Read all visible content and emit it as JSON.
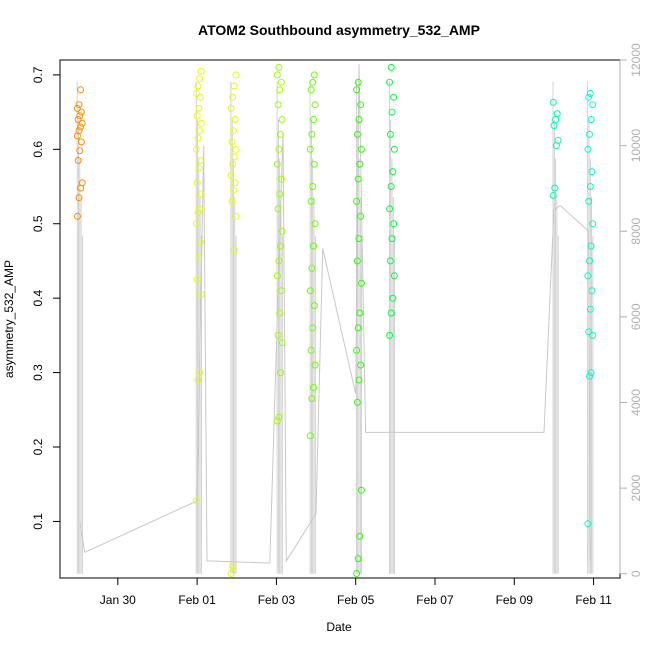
{
  "chart_data": {
    "type": "scatter",
    "title": "ATOM2 Southbound asymmetry_532_AMP",
    "xlabel": "Date",
    "ylabel": "asymmetry_532_AMP",
    "x_tick_labels": [
      "Jan 30",
      "Feb 01",
      "Feb 03",
      "Feb 05",
      "Feb 07",
      "Feb 09",
      "Feb 11"
    ],
    "y_tick_labels": [
      "0.1",
      "0.2",
      "0.3",
      "0.4",
      "0.5",
      "0.6",
      "0.7"
    ],
    "y2_tick_labels": [
      "0",
      "2000",
      "4000",
      "6000",
      "8000",
      "10000",
      "12000"
    ],
    "colors": {
      "axis": "#000000",
      "secondary_axis": "#b0b0b0",
      "line": "#c8c8c8",
      "cluster_colors": [
        "#ff8c00",
        "#e6ff00",
        "#e3ff00",
        "#9aff00",
        "#6aff00",
        "#2aff00",
        "#00ff3c",
        "#00ffaa",
        "#00ffcc"
      ]
    },
    "series": [
      {
        "values": [
          {
            "x": "Jan 29 01:00",
            "y": [
              0.51,
              0.535,
              0.548,
              0.555,
              0.585,
              0.598,
              0.61,
              0.618,
              0.625,
              0.63,
              0.635,
              0.64,
              0.645,
              0.65,
              0.655,
              0.66,
              0.68
            ]
          },
          {
            "x": "Feb 01 01:00",
            "y": [
              0.128,
              0.29,
              0.3,
              0.405,
              0.425,
              0.455,
              0.475,
              0.5,
              0.515,
              0.52,
              0.54,
              0.555,
              0.575,
              0.585,
              0.6,
              0.615,
              0.625,
              0.635,
              0.645,
              0.655,
              0.67,
              0.675,
              0.685,
              0.695,
              0.705
            ]
          },
          {
            "x": "Feb 01 22:00",
            "y": [
              0.03,
              0.04,
              0.465,
              0.51,
              0.53,
              0.545,
              0.555,
              0.565,
              0.58,
              0.59,
              0.6,
              0.61,
              0.625,
              0.64,
              0.655,
              0.67,
              0.685,
              0.7
            ]
          },
          {
            "x": "Feb 03 02:00",
            "y": [
              0.235,
              0.24,
              0.3,
              0.34,
              0.35,
              0.38,
              0.41,
              0.43,
              0.45,
              0.47,
              0.49,
              0.52,
              0.54,
              0.56,
              0.58,
              0.6,
              0.62,
              0.64,
              0.66,
              0.68,
              0.69,
              0.7,
              0.71
            ]
          },
          {
            "x": "Feb 03 22:00",
            "y": [
              0.215,
              0.265,
              0.28,
              0.31,
              0.33,
              0.36,
              0.39,
              0.41,
              0.44,
              0.47,
              0.5,
              0.53,
              0.55,
              0.58,
              0.6,
              0.62,
              0.64,
              0.66,
              0.68,
              0.69,
              0.7
            ]
          },
          {
            "x": "Feb 05 02:00",
            "y": [
              0.03,
              0.05,
              0.08,
              0.142,
              0.26,
              0.29,
              0.31,
              0.33,
              0.36,
              0.38,
              0.42,
              0.45,
              0.48,
              0.51,
              0.53,
              0.56,
              0.58,
              0.6,
              0.62,
              0.64,
              0.66,
              0.68,
              0.69
            ]
          },
          {
            "x": "Feb 05 22:00",
            "y": [
              0.35,
              0.38,
              0.4,
              0.43,
              0.45,
              0.48,
              0.5,
              0.52,
              0.55,
              0.57,
              0.6,
              0.62,
              0.65,
              0.67,
              0.69,
              0.71
            ]
          },
          {
            "x": "Feb 10 01:00",
            "y": [
              0.538,
              0.548,
              0.605,
              0.612,
              0.632,
              0.64,
              0.648,
              0.663
            ]
          },
          {
            "x": "Feb 10 22:00",
            "y": [
              0.097,
              0.295,
              0.3,
              0.35,
              0.355,
              0.385,
              0.41,
              0.43,
              0.45,
              0.47,
              0.5,
              0.53,
              0.55,
              0.57,
              0.6,
              0.62,
              0.64,
              0.66,
              0.67,
              0.675
            ]
          }
        ]
      }
    ],
    "xlim": [
      "Jan 28 13:00",
      "Feb 11 16:00"
    ],
    "ylim": [
      0.024,
      0.72
    ],
    "y2lim": [
      -100,
      12000
    ],
    "secondary_line": [
      [
        "Jan 29 01:00",
        1200
      ],
      [
        "Jan 29 04:00",
        500
      ],
      [
        "Feb 01 00:00",
        1700
      ],
      [
        "Feb 01 04:00",
        10000
      ],
      [
        "Feb 01 06:00",
        300
      ],
      [
        "Feb 02 20:00",
        250
      ],
      [
        "Feb 03 04:00",
        10300
      ],
      [
        "Feb 03 06:00",
        300
      ],
      [
        "Feb 04 00:00",
        1400
      ],
      [
        "Feb 04 04:00",
        7600
      ],
      [
        "Feb 05 00:00",
        4200
      ],
      [
        "Feb 05 02:00",
        11900
      ],
      [
        "Feb 05 06:00",
        3300
      ],
      [
        "Feb 09 18:00",
        3300
      ],
      [
        "Feb 10 00:00",
        8500
      ],
      [
        "Feb 10 04:00",
        8600
      ],
      [
        "Feb 10 21:00",
        8000
      ],
      [
        "Feb 10 22:00",
        300
      ]
    ],
    "grid": false,
    "legend": "none"
  }
}
